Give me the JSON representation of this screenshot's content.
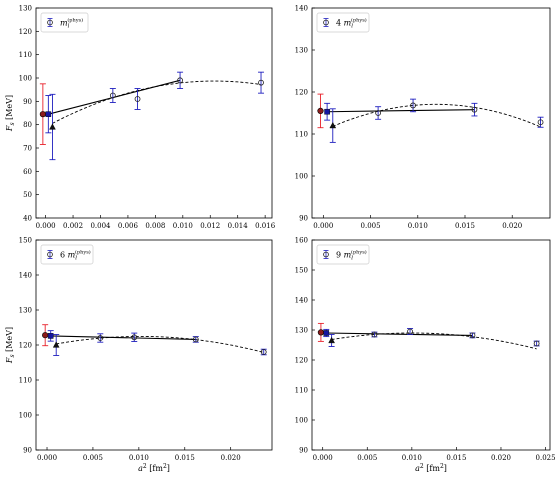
{
  "chart_data": [
    {
      "type": "scatter",
      "legend": "m_l^(phys)",
      "legend_main": "m",
      "legend_sub": "l",
      "legend_sup": "(phys)",
      "legend_mult": "",
      "ylabel": "F_s [MeV]",
      "xlabel": "",
      "xlim": [
        -0.0007,
        0.0165
      ],
      "ylim": [
        40,
        130
      ],
      "xticks": [
        "0.000",
        "0.002",
        "0.004",
        "0.006",
        "0.008",
        "0.010",
        "0.012",
        "0.014",
        "0.016"
      ],
      "xtick_values": [
        0,
        0.002,
        0.004,
        0.006,
        0.008,
        0.01,
        0.012,
        0.014,
        0.016
      ],
      "yticks": [
        40,
        50,
        60,
        70,
        80,
        90,
        100,
        110,
        120,
        130
      ],
      "data_points": [
        {
          "x": 0.0049,
          "y": 92.5,
          "err": 3.0
        },
        {
          "x": 0.0067,
          "y": 91.0,
          "err": 4.5
        },
        {
          "x": 0.0098,
          "y": 99.0,
          "err": 3.5
        },
        {
          "x": 0.0157,
          "y": 98.0,
          "err": 4.5
        }
      ],
      "red_point": {
        "x": -0.0002,
        "y": 84.5,
        "err": 13.0
      },
      "blue_square": {
        "x": 0.0002,
        "y": 84.5,
        "err": 8.0
      },
      "triangle": {
        "x": 0.0005,
        "y": 79.0,
        "err": 14.0
      },
      "solid_line": [
        [
          0.0002,
          84.5
        ],
        [
          0.0098,
          99.0
        ]
      ],
      "dashed_curve": {
        "x0": 0.0005,
        "x1": 0.0157,
        "c": [
          79.0,
          3200,
          -130000
        ]
      }
    },
    {
      "type": "scatter",
      "legend": "4 m_l^(phys)",
      "legend_main": "m",
      "legend_sub": "l",
      "legend_sup": "(phys)",
      "legend_mult": "4",
      "ylabel": "",
      "xlabel": "",
      "xlim": [
        -0.0012,
        0.024
      ],
      "ylim": [
        90,
        140
      ],
      "xticks": [
        "0.000",
        "0.005",
        "0.010",
        "0.015",
        "0.020"
      ],
      "xtick_values": [
        0,
        0.005,
        0.01,
        0.015,
        0.02
      ],
      "yticks": [
        90,
        100,
        110,
        120,
        130,
        140
      ],
      "data_points": [
        {
          "x": 0.0058,
          "y": 115.0,
          "err": 1.5
        },
        {
          "x": 0.0095,
          "y": 116.8,
          "err": 1.5
        },
        {
          "x": 0.016,
          "y": 115.8,
          "err": 1.5
        },
        {
          "x": 0.023,
          "y": 112.8,
          "err": 1.2
        }
      ],
      "red_point": {
        "x": -0.0003,
        "y": 115.5,
        "err": 4.0
      },
      "blue_square": {
        "x": 0.0004,
        "y": 115.3,
        "err": 2.0
      },
      "triangle": {
        "x": 0.001,
        "y": 112.0,
        "err": 4.0
      },
      "solid_line": [
        [
          0.0004,
          115.3
        ],
        [
          0.016,
          115.8
        ]
      ],
      "dashed_curve": {
        "x0": 0.001,
        "x1": 0.023,
        "c": [
          110.8,
          1050,
          -44000
        ]
      }
    },
    {
      "type": "scatter",
      "legend": "6 m_l^(phys)",
      "legend_main": "m",
      "legend_sub": "l",
      "legend_sup": "(phys)",
      "legend_mult": "6",
      "ylabel": "F_s [MeV]",
      "xlabel": "a^2 [fm^2]",
      "xlim": [
        -0.0012,
        0.0245
      ],
      "ylim": [
        90,
        150
      ],
      "xticks": [
        "0.000",
        "0.005",
        "0.010",
        "0.015",
        "0.020"
      ],
      "xtick_values": [
        0,
        0.005,
        0.01,
        0.015,
        0.02
      ],
      "yticks": [
        90,
        100,
        110,
        120,
        130,
        140,
        150
      ],
      "data_points": [
        {
          "x": 0.0058,
          "y": 122.0,
          "err": 1.2
        },
        {
          "x": 0.0095,
          "y": 122.2,
          "err": 1.2
        },
        {
          "x": 0.0162,
          "y": 121.6,
          "err": 0.8
        },
        {
          "x": 0.0236,
          "y": 118.0,
          "err": 0.8
        }
      ],
      "red_point": {
        "x": -0.0002,
        "y": 122.8,
        "err": 3.0
      },
      "blue_square": {
        "x": 0.0004,
        "y": 122.6,
        "err": 1.5
      },
      "triangle": {
        "x": 0.001,
        "y": 120.0,
        "err": 3.0
      },
      "solid_line": [
        [
          0.0004,
          122.6
        ],
        [
          0.0162,
          121.6
        ]
      ],
      "dashed_curve": {
        "x0": 0.001,
        "x1": 0.0236,
        "c": [
          119.8,
          520,
          -25500
        ]
      }
    },
    {
      "type": "scatter",
      "legend": "9 m_l^(phys)",
      "legend_main": "m",
      "legend_sub": "l",
      "legend_sup": "(phys)",
      "legend_mult": "9",
      "ylabel": "",
      "xlabel": "a^2 [fm^2]",
      "xlim": [
        -0.0012,
        0.0255
      ],
      "ylim": [
        90,
        160
      ],
      "xticks": [
        "0.000",
        "0.005",
        "0.010",
        "0.015",
        "0.020",
        "0.025"
      ],
      "xtick_values": [
        0,
        0.005,
        0.01,
        0.015,
        0.02,
        0.025
      ],
      "yticks": [
        90,
        100,
        110,
        120,
        130,
        140,
        150,
        160
      ],
      "data_points": [
        {
          "x": 0.0058,
          "y": 128.5,
          "err": 0.8
        },
        {
          "x": 0.0098,
          "y": 129.5,
          "err": 1.0
        },
        {
          "x": 0.0168,
          "y": 128.2,
          "err": 0.8
        },
        {
          "x": 0.024,
          "y": 125.5,
          "err": 0.8
        }
      ],
      "red_point": {
        "x": -0.0002,
        "y": 129.2,
        "err": 3.0
      },
      "blue_square": {
        "x": 0.0004,
        "y": 129.0,
        "err": 1.2
      },
      "triangle": {
        "x": 0.001,
        "y": 126.5,
        "err": 2.0
      },
      "solid_line": [
        [
          0.0004,
          129.0
        ],
        [
          0.0168,
          128.2
        ]
      ],
      "dashed_curve": {
        "x0": 0.001,
        "x1": 0.024,
        "c": [
          126.3,
          540,
          -27000
        ]
      }
    }
  ],
  "colors": {
    "red": "#e8202a",
    "blue": "#1f1fbf",
    "dark_blue": "#1515a0",
    "axis": "#000000"
  }
}
